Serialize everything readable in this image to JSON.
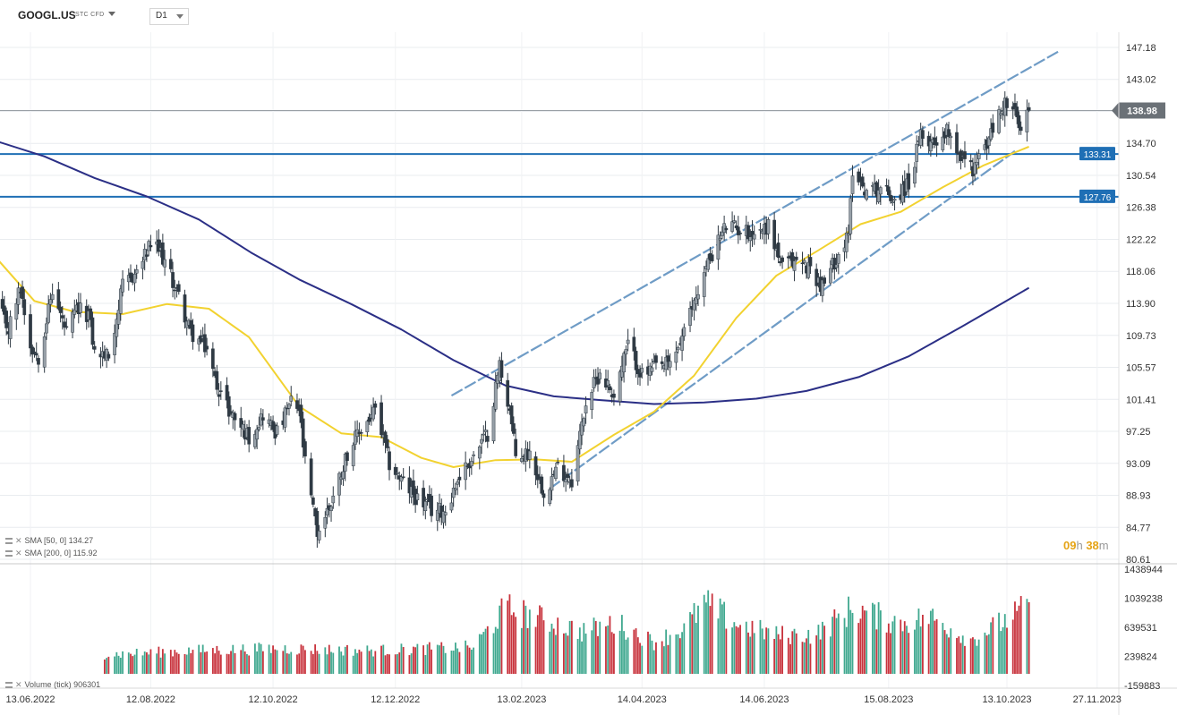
{
  "header": {
    "symbol": "GOOGL.US",
    "symbol_type": "STC CFD",
    "timeframe": "D1"
  },
  "timer": {
    "hours": "09",
    "h_unit": "h",
    "minutes": "38",
    "m_unit": "m"
  },
  "indicators": {
    "sma50_label": "SMA [50, 0]",
    "sma50_value": "134.27",
    "sma200_label": "SMA [200, 0]",
    "sma200_value": "115.92",
    "volume_label": "Volume (tick)",
    "volume_value": "906301"
  },
  "colors": {
    "bull": "#97a0a8",
    "bear": "#2f3a44",
    "sma50": "#f2d230",
    "sma200": "#2b2f86",
    "hline": "#1f6fb5",
    "channel": "#6f9cc6",
    "vol_up": "#3fa88f",
    "vol_down": "#c8323c",
    "last_tag": "#6b7177"
  },
  "chart_data": {
    "type": "candlestick",
    "symbol": "GOOGL.US",
    "timeframe": "D1",
    "last_price": 138.98,
    "price_axis": {
      "ticks": [
        147.18,
        143.02,
        138.86,
        134.7,
        130.54,
        126.38,
        122.22,
        118.06,
        113.9,
        109.73,
        105.57,
        101.41,
        97.25,
        93.09,
        88.93,
        84.77,
        80.61
      ],
      "tick_labels": [
        "147.18",
        "143.02",
        "",
        "134.70",
        "130.54",
        "126.38",
        "122.22",
        "118.06",
        "113.90",
        "109.73",
        "105.57",
        "101.41",
        "97.25",
        "93.09",
        "88.93",
        "84.77",
        "80.61"
      ],
      "range": [
        80.61,
        147.18
      ]
    },
    "date_axis": {
      "labels": [
        "13.06.2022",
        "12.08.2022",
        "12.10.2022",
        "12.12.2022",
        "13.02.2023",
        "14.04.2023",
        "14.06.2023",
        "15.08.2023",
        "13.10.2023",
        "27.11.2023"
      ]
    },
    "horizontal_lines": [
      {
        "value": 133.31,
        "label": "133.31"
      },
      {
        "value": 127.76,
        "label": "127.76"
      }
    ],
    "last_price_label": "138.98",
    "channel": {
      "upper": [
        [
          "2023-01-09",
          101.9
        ],
        [
          "2023-11-08",
          146.7
        ]
      ],
      "lower": [
        [
          "2023-02-27",
          89.8
        ],
        [
          "2023-10-17",
          133.7
        ]
      ]
    },
    "price_anchors": [
      [
        "2022-05-27",
        113.8
      ],
      [
        "2022-06-02",
        110.5
      ],
      [
        "2022-06-08",
        116.0
      ],
      [
        "2022-06-13",
        108.5
      ],
      [
        "2022-06-17",
        107.0
      ],
      [
        "2022-06-24",
        115.5
      ],
      [
        "2022-07-01",
        110.0
      ],
      [
        "2022-07-06",
        113.0
      ],
      [
        "2022-07-12",
        112.5
      ],
      [
        "2022-07-15",
        107.5
      ],
      [
        "2022-07-22",
        107.0
      ],
      [
        "2022-07-29",
        116.0
      ],
      [
        "2022-08-05",
        118.0
      ],
      [
        "2022-08-12",
        121.5
      ],
      [
        "2022-08-17",
        120.5
      ],
      [
        "2022-08-25",
        115.5
      ],
      [
        "2022-09-01",
        110.0
      ],
      [
        "2022-09-09",
        108.0
      ],
      [
        "2022-09-13",
        104.0
      ],
      [
        "2022-09-20",
        100.0
      ],
      [
        "2022-09-30",
        96.5
      ],
      [
        "2022-10-07",
        99.5
      ],
      [
        "2022-10-14",
        97.0
      ],
      [
        "2022-10-21",
        101.0
      ],
      [
        "2022-10-25",
        100.0
      ],
      [
        "2022-10-28",
        93.0
      ],
      [
        "2022-11-03",
        84.0
      ],
      [
        "2022-11-10",
        88.0
      ],
      [
        "2022-11-18",
        94.5
      ],
      [
        "2022-11-25",
        97.5
      ],
      [
        "2022-12-02",
        100.0
      ],
      [
        "2022-12-09",
        93.0
      ],
      [
        "2022-12-16",
        90.5
      ],
      [
        "2022-12-23",
        88.5
      ],
      [
        "2022-12-30",
        87.0
      ],
      [
        "2023-01-06",
        87.0
      ],
      [
        "2023-01-13",
        91.5
      ],
      [
        "2023-01-20",
        94.0
      ],
      [
        "2023-01-27",
        97.0
      ],
      [
        "2023-02-02",
        106.0
      ],
      [
        "2023-02-07",
        100.0
      ],
      [
        "2023-02-10",
        94.0
      ],
      [
        "2023-02-17",
        94.5
      ],
      [
        "2023-02-24",
        89.5
      ],
      [
        "2023-03-03",
        92.5
      ],
      [
        "2023-03-10",
        91.0
      ],
      [
        "2023-03-17",
        101.0
      ],
      [
        "2023-03-24",
        105.0
      ],
      [
        "2023-03-31",
        102.0
      ],
      [
        "2023-04-07",
        108.5
      ],
      [
        "2023-04-14",
        104.5
      ],
      [
        "2023-04-21",
        105.5
      ],
      [
        "2023-04-28",
        106.0
      ],
      [
        "2023-05-05",
        110.0
      ],
      [
        "2023-05-11",
        115.0
      ],
      [
        "2023-05-19",
        120.5
      ],
      [
        "2023-05-26",
        124.0
      ],
      [
        "2023-06-02",
        123.5
      ],
      [
        "2023-06-09",
        123.0
      ],
      [
        "2023-06-16",
        124.0
      ],
      [
        "2023-06-23",
        118.5
      ],
      [
        "2023-06-30",
        119.5
      ],
      [
        "2023-07-07",
        118.5
      ],
      [
        "2023-07-13",
        116.0
      ],
      [
        "2023-07-20",
        120.0
      ],
      [
        "2023-07-26",
        122.5
      ],
      [
        "2023-07-28",
        131.5
      ],
      [
        "2023-08-04",
        128.5
      ],
      [
        "2023-08-11",
        129.0
      ],
      [
        "2023-08-18",
        127.5
      ],
      [
        "2023-08-25",
        129.5
      ],
      [
        "2023-08-31",
        135.5
      ],
      [
        "2023-09-07",
        135.0
      ],
      [
        "2023-09-14",
        136.5
      ],
      [
        "2023-09-20",
        133.0
      ],
      [
        "2023-09-26",
        131.5
      ],
      [
        "2023-10-02",
        134.0
      ],
      [
        "2023-10-09",
        138.5
      ],
      [
        "2023-10-12",
        140.0
      ],
      [
        "2023-10-17",
        138.5
      ],
      [
        "2023-10-20",
        136.0
      ],
      [
        "2023-10-24",
        138.98
      ]
    ],
    "sma50": [
      [
        "2022-05-27",
        119.8
      ],
      [
        "2022-06-15",
        114.2
      ],
      [
        "2022-07-05",
        112.8
      ],
      [
        "2022-07-29",
        112.5
      ],
      [
        "2022-08-20",
        113.8
      ],
      [
        "2022-09-10",
        113.2
      ],
      [
        "2022-09-30",
        109.5
      ],
      [
        "2022-10-25",
        100.5
      ],
      [
        "2022-11-15",
        97.0
      ],
      [
        "2022-12-05",
        96.5
      ],
      [
        "2022-12-25",
        93.8
      ],
      [
        "2023-01-10",
        92.6
      ],
      [
        "2023-01-31",
        93.5
      ],
      [
        "2023-02-20",
        93.6
      ],
      [
        "2023-03-10",
        93.3
      ],
      [
        "2023-03-31",
        96.8
      ],
      [
        "2023-04-20",
        99.8
      ],
      [
        "2023-05-10",
        104.5
      ],
      [
        "2023-05-31",
        112.0
      ],
      [
        "2023-06-20",
        117.5
      ],
      [
        "2023-07-11",
        120.8
      ],
      [
        "2023-08-01",
        124.2
      ],
      [
        "2023-08-21",
        125.8
      ],
      [
        "2023-09-11",
        129.0
      ],
      [
        "2023-10-01",
        131.8
      ],
      [
        "2023-10-24",
        134.27
      ]
    ],
    "sma200": [
      [
        "2022-05-27",
        135.0
      ],
      [
        "2022-06-20",
        133.0
      ],
      [
        "2022-07-15",
        130.2
      ],
      [
        "2022-08-10",
        127.8
      ],
      [
        "2022-09-05",
        124.8
      ],
      [
        "2022-10-01",
        120.5
      ],
      [
        "2022-10-25",
        117.0
      ],
      [
        "2022-11-20",
        113.8
      ],
      [
        "2022-12-15",
        110.5
      ],
      [
        "2023-01-10",
        106.5
      ],
      [
        "2023-02-05",
        103.2
      ],
      [
        "2023-03-01",
        101.8
      ],
      [
        "2023-03-25",
        101.3
      ],
      [
        "2023-04-20",
        100.8
      ],
      [
        "2023-05-15",
        101.0
      ],
      [
        "2023-06-10",
        101.5
      ],
      [
        "2023-07-05",
        102.5
      ],
      [
        "2023-07-31",
        104.3
      ],
      [
        "2023-08-25",
        107.0
      ],
      [
        "2023-09-20",
        110.8
      ],
      [
        "2023-10-10",
        113.8
      ],
      [
        "2023-10-24",
        115.92
      ]
    ],
    "volume_axis": {
      "ticks": [
        1438944,
        1039238,
        639531,
        239824,
        -159883
      ],
      "tick_labels": [
        "1438944",
        "1039238",
        "639531",
        "239824",
        "-159883"
      ]
    },
    "volume_profile": [
      [
        "2022-07-20",
        270000
      ],
      [
        "2022-09-01",
        330000
      ],
      [
        "2022-10-15",
        360000
      ],
      [
        "2022-12-01",
        330000
      ],
      [
        "2023-01-20",
        380000
      ],
      [
        "2023-02-05",
        930000
      ],
      [
        "2023-03-15",
        600000
      ],
      [
        "2023-04-01",
        720000
      ],
      [
        "2023-04-20",
        450000
      ],
      [
        "2023-05-05",
        640000
      ],
      [
        "2023-05-15",
        1000000
      ],
      [
        "2023-06-01",
        700000
      ],
      [
        "2023-06-20",
        550000
      ],
      [
        "2023-07-10",
        560000
      ],
      [
        "2023-07-28",
        930000
      ],
      [
        "2023-08-20",
        720000
      ],
      [
        "2023-09-05",
        800000
      ],
      [
        "2023-09-25",
        480000
      ],
      [
        "2023-10-10",
        720000
      ],
      [
        "2023-10-24",
        950000
      ]
    ]
  }
}
